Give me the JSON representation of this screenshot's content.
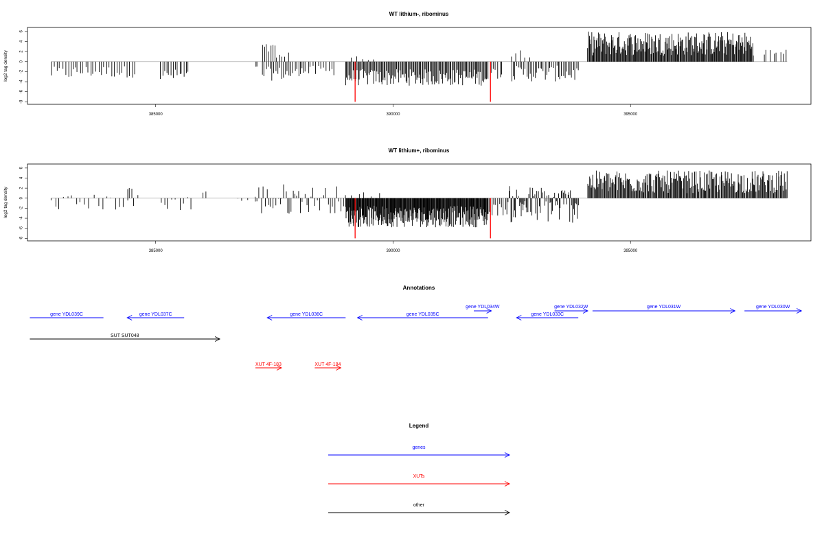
{
  "colors": {
    "bars": "#000000",
    "highlight": "#ff0000",
    "baseline": "#999999",
    "genes": "#0000ff",
    "xuts": "#ff0000",
    "other": "#000000"
  },
  "chart_data": [
    {
      "type": "bar",
      "title": "WT lithium-, ribominus",
      "ylabel": "log2 tag density",
      "xlim": [
        382300,
        398800
      ],
      "ylim": [
        -8.5,
        6.8
      ],
      "xticks": [
        385000,
        390000,
        395000
      ],
      "xtick_labels": [
        "385000",
        "390000",
        "395000"
      ],
      "yticks": [
        6,
        4,
        2,
        0,
        -2,
        -4,
        -6,
        -8
      ],
      "ytick_labels": [
        "6",
        "4",
        "2",
        "0",
        "-2",
        "-4",
        "-6",
        "-8"
      ],
      "highlight_bars": [
        {
          "x": 389200,
          "y": -8
        },
        {
          "x": 392050,
          "y": -8
        }
      ],
      "segments": [
        {
          "start": 382800,
          "end": 383300,
          "min": -3.5,
          "max": -1.0,
          "step": 60
        },
        {
          "start": 383300,
          "end": 384600,
          "min": -3.2,
          "max": -0.8,
          "step": 55
        },
        {
          "start": 385100,
          "end": 385700,
          "min": -4.0,
          "max": -1.5,
          "step": 45
        },
        {
          "start": 387100,
          "end": 387150,
          "min": -1.2,
          "max": -0.8,
          "step": 40
        },
        {
          "start": 387250,
          "end": 387550,
          "min": 1.5,
          "max": 3.6,
          "step": 45
        },
        {
          "start": 387250,
          "end": 388100,
          "min": -3.8,
          "max": -1.0,
          "step": 40
        },
        {
          "start": 387550,
          "end": 387800,
          "min": 0.8,
          "max": 2.2,
          "step": 60
        },
        {
          "start": 388100,
          "end": 388800,
          "min": -3.0,
          "max": -0.8,
          "step": 55
        },
        {
          "start": 389000,
          "end": 392000,
          "min": -4.8,
          "max": -1.5,
          "step": 22
        },
        {
          "start": 389100,
          "end": 389600,
          "min": 0.2,
          "max": 1.1,
          "step": 120
        },
        {
          "start": 392000,
          "end": 392300,
          "min": -3.5,
          "max": -1.0,
          "step": 50
        },
        {
          "start": 392500,
          "end": 392900,
          "min": 0.8,
          "max": 2.6,
          "step": 90
        },
        {
          "start": 392500,
          "end": 393900,
          "min": -4.0,
          "max": -0.8,
          "step": 35
        },
        {
          "start": 394100,
          "end": 397600,
          "min": 1.2,
          "max": 6.0,
          "step": 16
        },
        {
          "start": 397800,
          "end": 398300,
          "min": 0.8,
          "max": 2.6,
          "step": 70
        }
      ]
    },
    {
      "type": "bar",
      "title": "WT lithium+, ribominus",
      "ylabel": "log2 tag density",
      "xlim": [
        382300,
        398800
      ],
      "ylim": [
        -8.5,
        6.8
      ],
      "xticks": [
        385000,
        390000,
        395000
      ],
      "xtick_labels": [
        "385000",
        "390000",
        "395000"
      ],
      "yticks": [
        6,
        4,
        2,
        0,
        -2,
        -4,
        -6,
        -8
      ],
      "ytick_labels": [
        "6",
        "4",
        "2",
        "0",
        "-2",
        "-4",
        "-6",
        "-8"
      ],
      "highlight_bars": [
        {
          "x": 389200,
          "y": -8
        },
        {
          "x": 392050,
          "y": -8
        }
      ],
      "segments": [
        {
          "start": 382800,
          "end": 384600,
          "min": -2.5,
          "max": 0.8,
          "step": 90
        },
        {
          "start": 384400,
          "end": 384500,
          "min": 1.5,
          "max": 2.2,
          "step": 50
        },
        {
          "start": 385100,
          "end": 385800,
          "min": -2.5,
          "max": 0.6,
          "step": 80
        },
        {
          "start": 386000,
          "end": 386100,
          "min": 1.0,
          "max": 1.5,
          "step": 60
        },
        {
          "start": 386700,
          "end": 387100,
          "min": -1.0,
          "max": 0.6,
          "step": 120
        },
        {
          "start": 387100,
          "end": 388000,
          "min": -3.5,
          "max": 3.0,
          "step": 40
        },
        {
          "start": 388000,
          "end": 389000,
          "min": -3.0,
          "max": 2.5,
          "step": 45
        },
        {
          "start": 389000,
          "end": 392000,
          "min": -5.8,
          "max": -1.5,
          "step": 12
        },
        {
          "start": 389100,
          "end": 389700,
          "min": 0.3,
          "max": 1.2,
          "step": 150
        },
        {
          "start": 392000,
          "end": 392400,
          "min": -3.5,
          "max": -1.0,
          "step": 40
        },
        {
          "start": 392400,
          "end": 393900,
          "min": -5.0,
          "max": 2.5,
          "step": 20
        },
        {
          "start": 394100,
          "end": 398300,
          "min": 1.0,
          "max": 5.5,
          "step": 18
        }
      ]
    }
  ],
  "annotations": {
    "title": "Annotations",
    "genes": [
      {
        "label": "gene YDL039C",
        "start": 382350,
        "end": 383900,
        "dir": "none",
        "row": 0
      },
      {
        "label": "gene YDL037C",
        "start": 384400,
        "end": 385600,
        "dir": "left",
        "row": 0
      },
      {
        "label": "gene YDL036C",
        "start": 387350,
        "end": 389000,
        "dir": "left",
        "row": 0
      },
      {
        "label": "gene YDL035C",
        "start": 389250,
        "end": 392000,
        "dir": "left",
        "row": 0
      },
      {
        "label": "gene YDL034W",
        "start": 391700,
        "end": 392070,
        "dir": "right",
        "row": 1
      },
      {
        "label": "gene YDL033C",
        "start": 392600,
        "end": 393900,
        "dir": "left",
        "row": 0
      },
      {
        "label": "gene YDL032W",
        "start": 393400,
        "end": 394100,
        "dir": "right",
        "row": 1
      },
      {
        "label": "gene YDL031W",
        "start": 394200,
        "end": 397200,
        "dir": "right",
        "row": 1
      },
      {
        "label": "gene YDL030W",
        "start": 397400,
        "end": 398600,
        "dir": "right",
        "row": 1
      }
    ],
    "other": [
      {
        "label": "SUT SUT048",
        "start": 382350,
        "end": 386350,
        "dir": "right"
      }
    ],
    "xuts": [
      {
        "label": "XUT 4F-183",
        "start": 387100,
        "end": 387650,
        "dir": "right"
      },
      {
        "label": "XUT 4F-184",
        "start": 388350,
        "end": 388900,
        "dir": "right"
      }
    ]
  },
  "legend": {
    "title": "Legend",
    "items": [
      {
        "label": "genes",
        "kind": "genes"
      },
      {
        "label": "XUTs",
        "kind": "xuts"
      },
      {
        "label": "other",
        "kind": "other"
      }
    ]
  }
}
